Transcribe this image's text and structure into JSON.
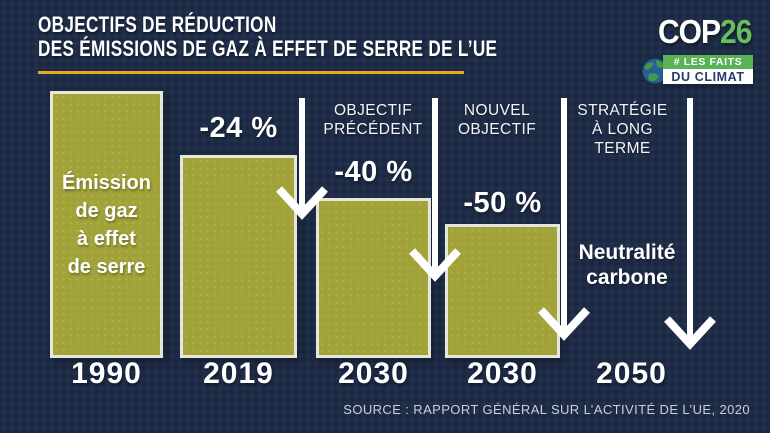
{
  "header": {
    "title_line1": "OBJECTIFS DE RÉDUCTION",
    "title_line2": "DES ÉMISSIONS DE GAZ À EFFET DE SERRE DE L’UE"
  },
  "branding": {
    "cop": "COP",
    "cop_number": "26",
    "badge_line1": "# LES FAITS",
    "badge_line2": "DU CLIMAT",
    "globe_icon": "earth-globe-icon"
  },
  "timeline": {
    "col1": {
      "year": "1990",
      "bar_label_lines": [
        "Émission",
        "de gaz",
        "à effet",
        "de serre"
      ]
    },
    "col2": {
      "year": "2019",
      "delta": "-24 %"
    },
    "col3": {
      "year": "2030",
      "header_lines": [
        "OBJECTIF",
        "PRÉCÉDENT"
      ],
      "delta": "-40 %"
    },
    "col4": {
      "year": "2030",
      "header_lines": [
        "NOUVEL",
        "OBJECTIF"
      ],
      "delta": "-50 %"
    },
    "col5": {
      "year": "2050",
      "header_lines": [
        "STRATÉGIE",
        "À LONG",
        "TERME"
      ],
      "goal_lines": [
        "Neutralité",
        "carbone"
      ]
    }
  },
  "footer": {
    "source": "SOURCE : RAPPORT GÉNÉRAL SUR L’ACTIVITÉ DE L’UE, 2020"
  },
  "colors": {
    "background": "#1e2c47",
    "bar_fill": "#a1a238",
    "bar_border": "#e6e6db",
    "accent_gold": "#e7a71b",
    "brand_green": "#67bd62",
    "badge_navy": "#2c3a6a",
    "text_white": "#ffffff"
  },
  "chart_data": {
    "type": "bar",
    "title": "Objectifs de réduction des émissions de gaz à effet de serre de l'UE",
    "categories": [
      "1990",
      "2019",
      "2030",
      "2030",
      "2050"
    ],
    "values": [
      100,
      76,
      60,
      50,
      0
    ],
    "value_unit": "indice des émissions, 1990 = 100",
    "ylim": [
      0,
      100
    ],
    "grid": false,
    "legend": false,
    "bar_inner_label": "Émission de gaz à effet de serre",
    "annotations": [
      {
        "category": "1990",
        "label": "Émission de gaz à effet de serre"
      },
      {
        "category": "2019",
        "label": "-24 %"
      },
      {
        "category": "2030",
        "header": "OBJECTIF PRÉCÉDENT",
        "label": "-40 %"
      },
      {
        "category": "2030",
        "header": "NOUVEL OBJECTIF",
        "label": "-50 %"
      },
      {
        "category": "2050",
        "header": "STRATÉGIE À LONG TERME",
        "label": "Neutralité carbone"
      }
    ],
    "source": "SOURCE : RAPPORT GÉNÉRAL SUR L’ACTIVITÉ DE L’UE, 2020"
  }
}
